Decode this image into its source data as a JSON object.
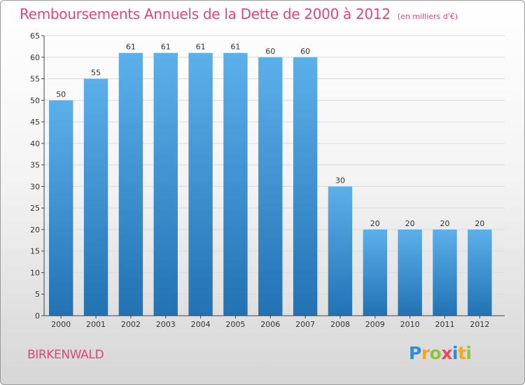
{
  "title": "Remboursements Annuels de la Dette de 2000 à 2012",
  "subtitle": "(en milliers d'€)",
  "commune": "BIRKENWALD",
  "brand": {
    "letters": [
      "P",
      "r",
      "o",
      "x",
      "i",
      "t",
      "i"
    ],
    "colors": [
      "#2e8fd4",
      "#f5a623",
      "#8cc63f",
      "#e84a5f",
      "#2e8fd4",
      "#f5a623",
      "#8cc63f"
    ]
  },
  "colors": {
    "title": "#e0457b",
    "bar_top": "#5cb0ea",
    "bar_bottom": "#2272b4",
    "grid": "#dcdcdc",
    "axis": "#444444"
  },
  "chart_data": {
    "type": "bar",
    "title": "Remboursements Annuels de la Dette de 2000 à 2012",
    "subtitle": "(en milliers d'€)",
    "categories": [
      "2000",
      "2001",
      "2002",
      "2003",
      "2004",
      "2005",
      "2006",
      "2007",
      "2008",
      "2009",
      "2010",
      "2011",
      "2012"
    ],
    "values": [
      50,
      55,
      61,
      61,
      61,
      61,
      60,
      60,
      30,
      20,
      20,
      20,
      20
    ],
    "xlabel": "",
    "ylabel": "",
    "ylim": [
      0,
      65
    ],
    "yticks": [
      0,
      5,
      10,
      15,
      20,
      25,
      30,
      35,
      40,
      45,
      50,
      55,
      60,
      65
    ],
    "grid": true,
    "legend": "none"
  }
}
